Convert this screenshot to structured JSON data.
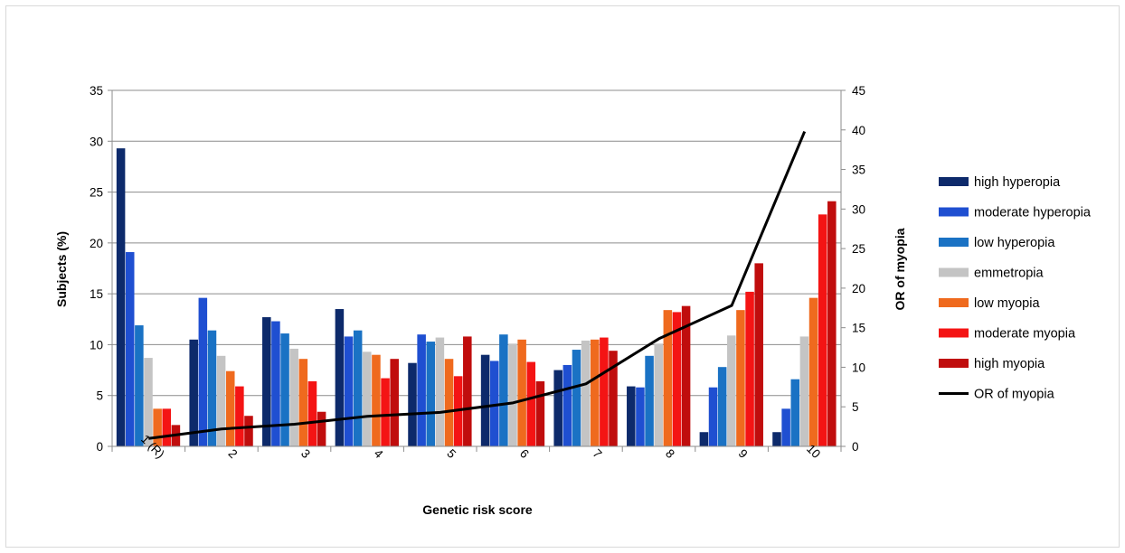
{
  "chart_data": {
    "type": "bar",
    "categories": [
      "1 (R)",
      "2",
      "3",
      "4",
      "5",
      "6",
      "7",
      "8",
      "9",
      "10"
    ],
    "xlabel": "Genetic risk score",
    "ylabel": "Subjects (%)",
    "y2label": "OR of myopia",
    "ylim": [
      0,
      35
    ],
    "y2lim": [
      0,
      45
    ],
    "yticks": [
      0,
      5,
      10,
      15,
      20,
      25,
      30,
      35
    ],
    "y2ticks": [
      0,
      5,
      10,
      15,
      20,
      25,
      30,
      35,
      40,
      45
    ],
    "grid": true,
    "legend_position": "right",
    "series": [
      {
        "name": "high hyperopia",
        "color": "#0d2a6b",
        "values": [
          29.3,
          10.5,
          12.7,
          13.5,
          8.2,
          9.0,
          7.5,
          5.9,
          1.4,
          1.4
        ]
      },
      {
        "name": "moderate hyperopia",
        "color": "#1f4fd1",
        "values": [
          19.1,
          14.6,
          12.3,
          10.8,
          11.0,
          8.4,
          8.0,
          5.8,
          5.8,
          3.7
        ]
      },
      {
        "name": "low hyperopia",
        "color": "#1a72c4",
        "values": [
          11.9,
          11.4,
          11.1,
          11.4,
          10.3,
          11.0,
          9.5,
          8.9,
          7.8,
          6.6
        ]
      },
      {
        "name": "emmetropia",
        "color": "#c4c4c4",
        "values": [
          8.7,
          8.9,
          9.6,
          9.3,
          10.7,
          10.1,
          10.4,
          10.1,
          10.9,
          10.8
        ]
      },
      {
        "name": "low myopia",
        "color": "#ef6a1e",
        "values": [
          3.7,
          7.4,
          8.6,
          9.0,
          8.6,
          10.5,
          10.5,
          13.4,
          13.4,
          14.6
        ]
      },
      {
        "name": "moderate myopia",
        "color": "#f41414",
        "values": [
          3.7,
          5.9,
          6.4,
          6.7,
          6.9,
          8.3,
          10.7,
          13.2,
          15.2,
          22.8
        ]
      },
      {
        "name": "high myopia",
        "color": "#c00d0d",
        "values": [
          2.1,
          3.0,
          3.4,
          8.6,
          10.8,
          6.4,
          9.4,
          13.8,
          18.0,
          24.1
        ]
      }
    ],
    "line_series": {
      "name": "OR of myopia",
      "color": "#000000",
      "axis": "right",
      "values": [
        1.0,
        2.2,
        2.8,
        3.8,
        4.3,
        5.5,
        7.9,
        13.6,
        17.8,
        39.8
      ]
    }
  }
}
